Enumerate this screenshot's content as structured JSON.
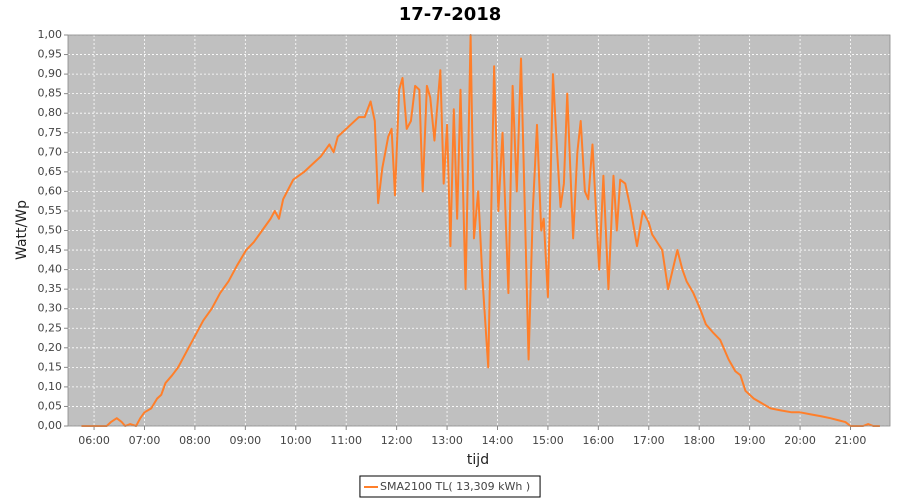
{
  "chart_data": {
    "type": "line",
    "title": "17-7-2018",
    "x_label": "tijd",
    "y_label": "Watt/Wp",
    "x": [
      "05:45",
      "06:00",
      "06:15",
      "06:20",
      "06:27",
      "06:33",
      "06:37",
      "06:43",
      "06:50",
      "06:55",
      "07:00",
      "07:08",
      "07:15",
      "07:20",
      "07:25",
      "07:33",
      "07:40",
      "07:50",
      "08:00",
      "08:10",
      "08:20",
      "08:30",
      "08:40",
      "08:50",
      "09:01",
      "09:10",
      "09:20",
      "09:30",
      "09:35",
      "09:40",
      "09:45",
      "09:57",
      "10:10",
      "10:20",
      "10:30",
      "10:40",
      "10:45",
      "10:50",
      "10:55",
      "11:05",
      "11:15",
      "11:22",
      "11:29",
      "11:34",
      "11:38",
      "11:43",
      "11:50",
      "11:54",
      "11:58",
      "12:03",
      "12:07",
      "12:12",
      "12:17",
      "12:22",
      "12:27",
      "12:31",
      "12:36",
      "12:40",
      "12:45",
      "12:52",
      "12:56",
      "13:00",
      "13:04",
      "13:08",
      "13:12",
      "13:16",
      "13:22",
      "13:28",
      "13:32",
      "13:37",
      "13:42",
      "13:49",
      "13:53",
      "13:56",
      "14:01",
      "14:06",
      "14:13",
      "14:18",
      "14:23",
      "14:28",
      "14:37",
      "14:42",
      "14:47",
      "14:52",
      "14:55",
      "15:00",
      "15:06",
      "15:11",
      "15:15",
      "15:19",
      "15:23",
      "15:30",
      "15:35",
      "15:39",
      "15:44",
      "15:48",
      "15:53",
      "16:01",
      "16:06",
      "16:12",
      "16:18",
      "16:22",
      "16:26",
      "16:32",
      "16:38",
      "16:46",
      "16:53",
      "17:00",
      "17:04",
      "17:10",
      "17:16",
      "17:23",
      "17:34",
      "17:40",
      "17:45",
      "17:53",
      "18:01",
      "18:08",
      "18:16",
      "18:25",
      "18:35",
      "18:43",
      "18:49",
      "18:55",
      "19:05",
      "19:13",
      "19:25",
      "19:37",
      "19:50",
      "20:00",
      "20:12",
      "20:25",
      "20:36",
      "20:45",
      "20:54",
      "21:00",
      "21:15",
      "21:21",
      "21:27",
      "21:35"
    ],
    "series": [
      {
        "name": "SMA2100 TL( 13,309 kWh )",
        "color": "#ff7f2a",
        "values": [
          0,
          0,
          0,
          0.01,
          0.02,
          0.01,
          0,
          0.005,
          0,
          0.02,
          0.035,
          0.045,
          0.07,
          0.08,
          0.11,
          0.13,
          0.15,
          0.19,
          0.23,
          0.27,
          0.3,
          0.34,
          0.37,
          0.41,
          0.45,
          0.47,
          0.5,
          0.53,
          0.55,
          0.53,
          0.58,
          0.63,
          0.65,
          0.67,
          0.69,
          0.72,
          0.7,
          0.74,
          0.75,
          0.77,
          0.79,
          0.79,
          0.83,
          0.78,
          0.57,
          0.66,
          0.74,
          0.76,
          0.59,
          0.86,
          0.89,
          0.76,
          0.78,
          0.87,
          0.86,
          0.6,
          0.87,
          0.84,
          0.73,
          0.91,
          0.62,
          0.77,
          0.46,
          0.81,
          0.53,
          0.86,
          0.35,
          1.0,
          0.48,
          0.6,
          0.38,
          0.15,
          0.6,
          0.92,
          0.55,
          0.75,
          0.34,
          0.87,
          0.6,
          0.94,
          0.17,
          0.55,
          0.77,
          0.5,
          0.53,
          0.33,
          0.9,
          0.7,
          0.56,
          0.62,
          0.85,
          0.48,
          0.7,
          0.78,
          0.6,
          0.58,
          0.72,
          0.4,
          0.64,
          0.35,
          0.64,
          0.5,
          0.63,
          0.62,
          0.56,
          0.46,
          0.55,
          0.52,
          0.49,
          0.47,
          0.45,
          0.35,
          0.45,
          0.4,
          0.37,
          0.34,
          0.3,
          0.26,
          0.24,
          0.22,
          0.17,
          0.14,
          0.13,
          0.09,
          0.07,
          0.06,
          0.045,
          0.04,
          0.035,
          0.035,
          0.03,
          0.025,
          0.02,
          0.015,
          0.01,
          0,
          0,
          0.005,
          0,
          0
        ]
      }
    ],
    "xlim": [
      "05:29",
      "21:47"
    ],
    "xticks": [
      "06:00",
      "07:00",
      "08:00",
      "09:00",
      "10:00",
      "11:00",
      "12:00",
      "13:00",
      "14:00",
      "15:00",
      "16:00",
      "17:00",
      "18:00",
      "19:00",
      "20:00",
      "21:00"
    ],
    "ylim": [
      0,
      1
    ],
    "yticks": [
      {
        "value": 0,
        "label": "0,00"
      },
      {
        "value": 0.05,
        "label": "0,05"
      },
      {
        "value": 0.1,
        "label": "0,10"
      },
      {
        "value": 0.15,
        "label": "0,15"
      },
      {
        "value": 0.2,
        "label": "0,20"
      },
      {
        "value": 0.25,
        "label": "0,25"
      },
      {
        "value": 0.3,
        "label": "0,30"
      },
      {
        "value": 0.35,
        "label": "0,35"
      },
      {
        "value": 0.4,
        "label": "0,40"
      },
      {
        "value": 0.45,
        "label": "0,45"
      },
      {
        "value": 0.5,
        "label": "0,50"
      },
      {
        "value": 0.55,
        "label": "0,55"
      },
      {
        "value": 0.6,
        "label": "0,60"
      },
      {
        "value": 0.65,
        "label": "0,65"
      },
      {
        "value": 0.7,
        "label": "0,70"
      },
      {
        "value": 0.75,
        "label": "0,75"
      },
      {
        "value": 0.8,
        "label": "0,80"
      },
      {
        "value": 0.85,
        "label": "0,85"
      },
      {
        "value": 0.9,
        "label": "0,90"
      },
      {
        "value": 0.95,
        "label": "0,95"
      },
      {
        "value": 1,
        "label": "1,00"
      }
    ],
    "grid": true,
    "legend": "bottom"
  }
}
